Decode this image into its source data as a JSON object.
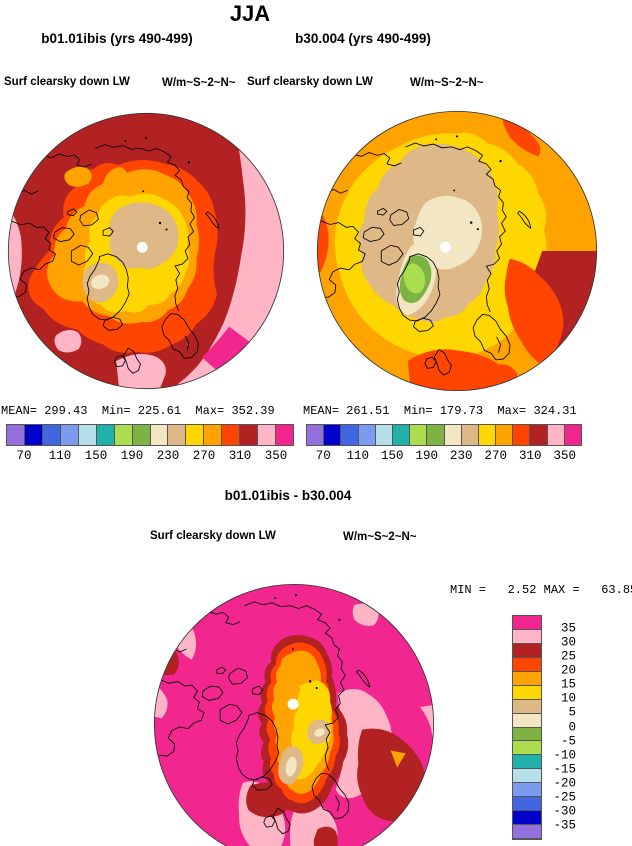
{
  "season_title": "JJA",
  "panels": [
    {
      "title": "b01.01ibis (yrs 490-499)",
      "field_label": "Surf clearsky down LW",
      "units_label": "W/m~S~2~N~",
      "stats": "MEAN= 299.43  Min= 225.61  Max= 352.39",
      "ticks": [
        "70",
        "110",
        "150",
        "190",
        "230",
        "270",
        "310",
        "350"
      ]
    },
    {
      "title": "b30.004 (yrs 490-499)",
      "field_label": "Surf clearsky down LW",
      "units_label": "W/m~S~2~N~",
      "stats": "MEAN= 261.51  Min= 179.73  Max= 324.31",
      "ticks": [
        "70",
        "110",
        "150",
        "190",
        "230",
        "270",
        "310",
        "350"
      ]
    }
  ],
  "diff": {
    "title": "b01.01ibis - b30.004",
    "field_label": "Surf clearsky down LW",
    "units_label": "W/m~S~2~N~",
    "stats": "MIN =   2.52 MAX =   63.85",
    "labels": [
      "35",
      "30",
      "25",
      "20",
      "15",
      "10",
      "5",
      "0",
      "-5",
      "-10",
      "-15",
      "-20",
      "-25",
      "-30",
      "-35"
    ]
  },
  "scale": {
    "palette": {
      "purple": "#9370DB",
      "navy": "#0000CC",
      "royal": "#4066E0",
      "cornflower": "#7B9BEF",
      "palecyan": "#B5E0EA",
      "teal": "#20B2AA",
      "lightgreen": "#ABDD4F",
      "green": "#7CB342",
      "cream": "#F2E7C2",
      "tan": "#DEB887",
      "yellow": "#FFD700",
      "orange": "#FFA300",
      "orangered": "#FF4500",
      "darkred": "#B22222",
      "pink": "#FFB5C5",
      "magenta": "#F2268F"
    },
    "order_low_to_high": [
      "purple",
      "navy",
      "royal",
      "cornflower",
      "palecyan",
      "teal",
      "lightgreen",
      "green",
      "cream",
      "tan",
      "yellow",
      "orange",
      "orangered",
      "darkred",
      "pink",
      "magenta"
    ]
  },
  "chart_data": [
    {
      "type": "heatmap",
      "subtype": "polar-stereographic-filled-contour-map",
      "season": "JJA",
      "title": "b01.01ibis (yrs 490-499)",
      "field": "Surf clearsky down LW",
      "units": "W/m~S~2~N~",
      "stats": {
        "mean": 299.43,
        "min": 225.61,
        "max": 352.39
      },
      "contour_levels": [
        70,
        90,
        110,
        130,
        150,
        170,
        190,
        210,
        230,
        250,
        270,
        290,
        310,
        330,
        350
      ],
      "colorbar_tick_labels": [
        70,
        110,
        150,
        190,
        230,
        270,
        310,
        350
      ],
      "legend_position": "below",
      "palette_low_to_high": [
        "#9370DB",
        "#0000CC",
        "#4066E0",
        "#7B9BEF",
        "#B5E0EA",
        "#20B2AA",
        "#ABDD4F",
        "#7CB342",
        "#F2E7C2",
        "#DEB887",
        "#FFD700",
        "#FFA300",
        "#FF4500",
        "#B22222",
        "#FFB5C5",
        "#F2268F"
      ]
    },
    {
      "type": "heatmap",
      "subtype": "polar-stereographic-filled-contour-map",
      "season": "JJA",
      "title": "b30.004 (yrs 490-499)",
      "field": "Surf clearsky down LW",
      "units": "W/m~S~2~N~",
      "stats": {
        "mean": 261.51,
        "min": 179.73,
        "max": 324.31
      },
      "contour_levels": [
        70,
        90,
        110,
        130,
        150,
        170,
        190,
        210,
        230,
        250,
        270,
        290,
        310,
        330,
        350
      ],
      "colorbar_tick_labels": [
        70,
        110,
        150,
        190,
        230,
        270,
        310,
        350
      ],
      "legend_position": "below",
      "palette_low_to_high": [
        "#9370DB",
        "#0000CC",
        "#4066E0",
        "#7B9BEF",
        "#B5E0EA",
        "#20B2AA",
        "#ABDD4F",
        "#7CB342",
        "#F2E7C2",
        "#DEB887",
        "#FFD700",
        "#FFA300",
        "#FF4500",
        "#B22222",
        "#FFB5C5",
        "#F2268F"
      ]
    },
    {
      "type": "heatmap",
      "subtype": "polar-stereographic-filled-contour-map-difference",
      "season": "JJA",
      "title": "b01.01ibis - b30.004",
      "field": "Surf clearsky down LW",
      "units": "W/m~S~2~N~",
      "stats": {
        "min": 2.52,
        "max": 63.85
      },
      "contour_levels": [
        -35,
        -30,
        -25,
        -20,
        -15,
        -10,
        -5,
        0,
        5,
        10,
        15,
        20,
        25,
        30,
        35
      ],
      "colorbar_tick_labels": [
        35,
        30,
        25,
        20,
        15,
        10,
        5,
        0,
        -5,
        -10,
        -15,
        -20,
        -25,
        -30,
        -35
      ],
      "legend_position": "right",
      "palette_low_to_high": [
        "#9370DB",
        "#0000CC",
        "#4066E0",
        "#7B9BEF",
        "#B5E0EA",
        "#20B2AA",
        "#ABDD4F",
        "#7CB342",
        "#F2E7C2",
        "#DEB887",
        "#FFD700",
        "#FFA300",
        "#FF4500",
        "#B22222",
        "#FFB5C5",
        "#F2268F"
      ]
    }
  ]
}
